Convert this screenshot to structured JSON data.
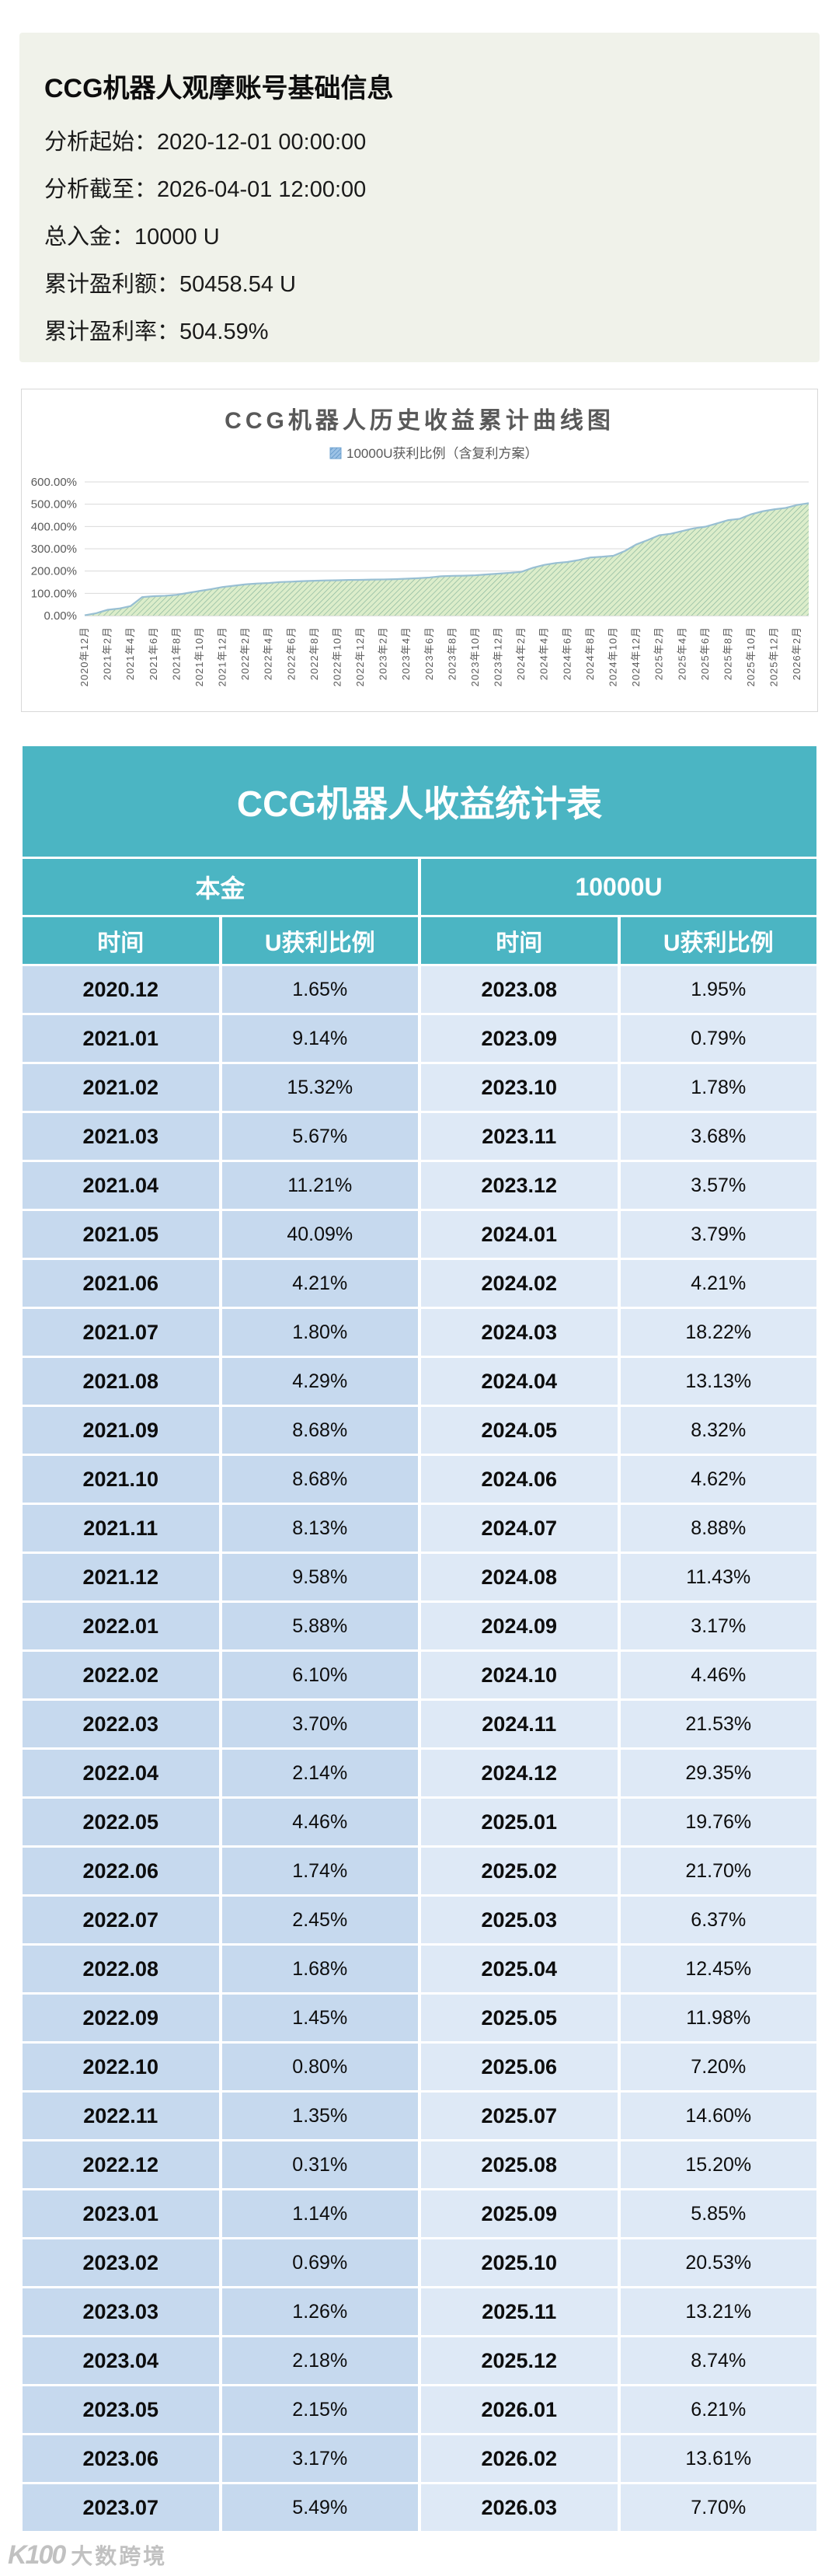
{
  "header_card": {
    "title": "CCG机器人观摩账号基础信息",
    "info_lines": [
      {
        "label": "分析起始：",
        "value": "2020-12-01 00:00:00"
      },
      {
        "label": "分析截至：",
        "value": "2026-04-01 12:00:00"
      },
      {
        "label": "总入金：",
        "value": "10000 U"
      },
      {
        "label": "累计盈利额：",
        "value": "50458.54 U"
      },
      {
        "label": "累计盈利率：",
        "value": "504.59%"
      }
    ]
  },
  "chart_data": {
    "type": "area",
    "title": "CCG机器人历史收益累计曲线图",
    "legend": "10000U获利比例（含复利方案）",
    "legend_position": "top",
    "grid": true,
    "ylabel": "",
    "xlabel": "",
    "ylim": [
      0,
      600
    ],
    "y_tick_labels": [
      "0.00%",
      "100.00%",
      "200.00%",
      "300.00%",
      "400.00%",
      "500.00%",
      "600.00%"
    ],
    "x_tick_labels": [
      "2020年12月",
      "2021年2月",
      "2021年4月",
      "2021年6月",
      "2021年8月",
      "2021年10月",
      "2021年12月",
      "2022年2月",
      "2022年4月",
      "2022年6月",
      "2022年8月",
      "2022年10月",
      "2022年12月",
      "2023年2月",
      "2023年4月",
      "2023年6月",
      "2023年8月",
      "2023年10月",
      "2023年12月",
      "2024年2月",
      "2024年4月",
      "2024年6月",
      "2024年8月",
      "2024年10月",
      "2024年12月",
      "2025年2月",
      "2025年4月",
      "2025年6月",
      "2025年8月",
      "2025年10月",
      "2025年12月",
      "2026年2月"
    ],
    "categories": [
      "2020.12",
      "2021.01",
      "2021.02",
      "2021.03",
      "2021.04",
      "2021.05",
      "2021.06",
      "2021.07",
      "2021.08",
      "2021.09",
      "2021.10",
      "2021.11",
      "2021.12",
      "2022.01",
      "2022.02",
      "2022.03",
      "2022.04",
      "2022.05",
      "2022.06",
      "2022.07",
      "2022.08",
      "2022.09",
      "2022.10",
      "2022.11",
      "2022.12",
      "2023.01",
      "2023.02",
      "2023.03",
      "2023.04",
      "2023.05",
      "2023.06",
      "2023.07",
      "2023.08",
      "2023.09",
      "2023.10",
      "2023.11",
      "2023.12",
      "2024.01",
      "2024.02",
      "2024.03",
      "2024.04",
      "2024.05",
      "2024.06",
      "2024.07",
      "2024.08",
      "2024.09",
      "2024.10",
      "2024.11",
      "2024.12",
      "2025.01",
      "2025.02",
      "2025.03",
      "2025.04",
      "2025.05",
      "2025.06",
      "2025.07",
      "2025.08",
      "2025.09",
      "2025.10",
      "2025.11",
      "2025.12",
      "2026.01",
      "2026.02",
      "2026.03"
    ],
    "values": [
      1.65,
      10.79,
      26.11,
      31.78,
      42.99,
      83.08,
      87.29,
      89.09,
      93.38,
      102.06,
      110.74,
      118.87,
      128.45,
      134.33,
      140.43,
      144.13,
      146.27,
      150.73,
      152.47,
      154.92,
      156.6,
      158.05,
      158.85,
      160.2,
      160.51,
      161.65,
      162.34,
      163.6,
      165.78,
      167.93,
      171.1,
      176.59,
      178.54,
      179.33,
      181.11,
      184.79,
      188.36,
      192.15,
      196.36,
      214.58,
      227.71,
      236.03,
      240.65,
      249.53,
      260.96,
      264.13,
      268.59,
      290.12,
      319.47,
      339.23,
      360.93,
      367.3,
      379.75,
      391.73,
      398.93,
      413.53,
      428.73,
      434.58,
      455.11,
      468.32,
      477.06,
      483.27,
      496.88,
      504.58
    ],
    "colors": {
      "area_fill": "#dcedca",
      "area_hatch": "#84b39b",
      "line": "#98bfd3",
      "legend_swatch": "#9cc2e5",
      "grid": "#d9d9d9"
    }
  },
  "table": {
    "title": "CCG机器人收益统计表",
    "principal_label": "本金",
    "principal_value": "10000U",
    "col_headers": [
      "时间",
      "U获利比例",
      "时间",
      "U获利比例"
    ],
    "rows": [
      [
        "2020.12",
        "1.65%",
        "2023.08",
        "1.95%"
      ],
      [
        "2021.01",
        "9.14%",
        "2023.09",
        "0.79%"
      ],
      [
        "2021.02",
        "15.32%",
        "2023.10",
        "1.78%"
      ],
      [
        "2021.03",
        "5.67%",
        "2023.11",
        "3.68%"
      ],
      [
        "2021.04",
        "11.21%",
        "2023.12",
        "3.57%"
      ],
      [
        "2021.05",
        "40.09%",
        "2024.01",
        "3.79%"
      ],
      [
        "2021.06",
        "4.21%",
        "2024.02",
        "4.21%"
      ],
      [
        "2021.07",
        "1.80%",
        "2024.03",
        "18.22%"
      ],
      [
        "2021.08",
        "4.29%",
        "2024.04",
        "13.13%"
      ],
      [
        "2021.09",
        "8.68%",
        "2024.05",
        "8.32%"
      ],
      [
        "2021.10",
        "8.68%",
        "2024.06",
        "4.62%"
      ],
      [
        "2021.11",
        "8.13%",
        "2024.07",
        "8.88%"
      ],
      [
        "2021.12",
        "9.58%",
        "2024.08",
        "11.43%"
      ],
      [
        "2022.01",
        "5.88%",
        "2024.09",
        "3.17%"
      ],
      [
        "2022.02",
        "6.10%",
        "2024.10",
        "4.46%"
      ],
      [
        "2022.03",
        "3.70%",
        "2024.11",
        "21.53%"
      ],
      [
        "2022.04",
        "2.14%",
        "2024.12",
        "29.35%"
      ],
      [
        "2022.05",
        "4.46%",
        "2025.01",
        "19.76%"
      ],
      [
        "2022.06",
        "1.74%",
        "2025.02",
        "21.70%"
      ],
      [
        "2022.07",
        "2.45%",
        "2025.03",
        "6.37%"
      ],
      [
        "2022.08",
        "1.68%",
        "2025.04",
        "12.45%"
      ],
      [
        "2022.09",
        "1.45%",
        "2025.05",
        "11.98%"
      ],
      [
        "2022.10",
        "0.80%",
        "2025.06",
        "7.20%"
      ],
      [
        "2022.11",
        "1.35%",
        "2025.07",
        "14.60%"
      ],
      [
        "2022.12",
        "0.31%",
        "2025.08",
        "15.20%"
      ],
      [
        "2023.01",
        "1.14%",
        "2025.09",
        "5.85%"
      ],
      [
        "2023.02",
        "0.69%",
        "2025.10",
        "20.53%"
      ],
      [
        "2023.03",
        "1.26%",
        "2025.11",
        "13.21%"
      ],
      [
        "2023.04",
        "2.18%",
        "2025.12",
        "8.74%"
      ],
      [
        "2023.05",
        "2.15%",
        "2026.01",
        "6.21%"
      ],
      [
        "2023.06",
        "3.17%",
        "2026.02",
        "13.61%"
      ],
      [
        "2023.07",
        "5.49%",
        "2026.03",
        "7.70%"
      ]
    ],
    "accent_color": "#4bb5c3",
    "left_cell_color": "#c6d9ee",
    "right_cell_color": "#dee9f6"
  },
  "watermark": {
    "logo_text": "K100",
    "text": "大数跨境"
  }
}
